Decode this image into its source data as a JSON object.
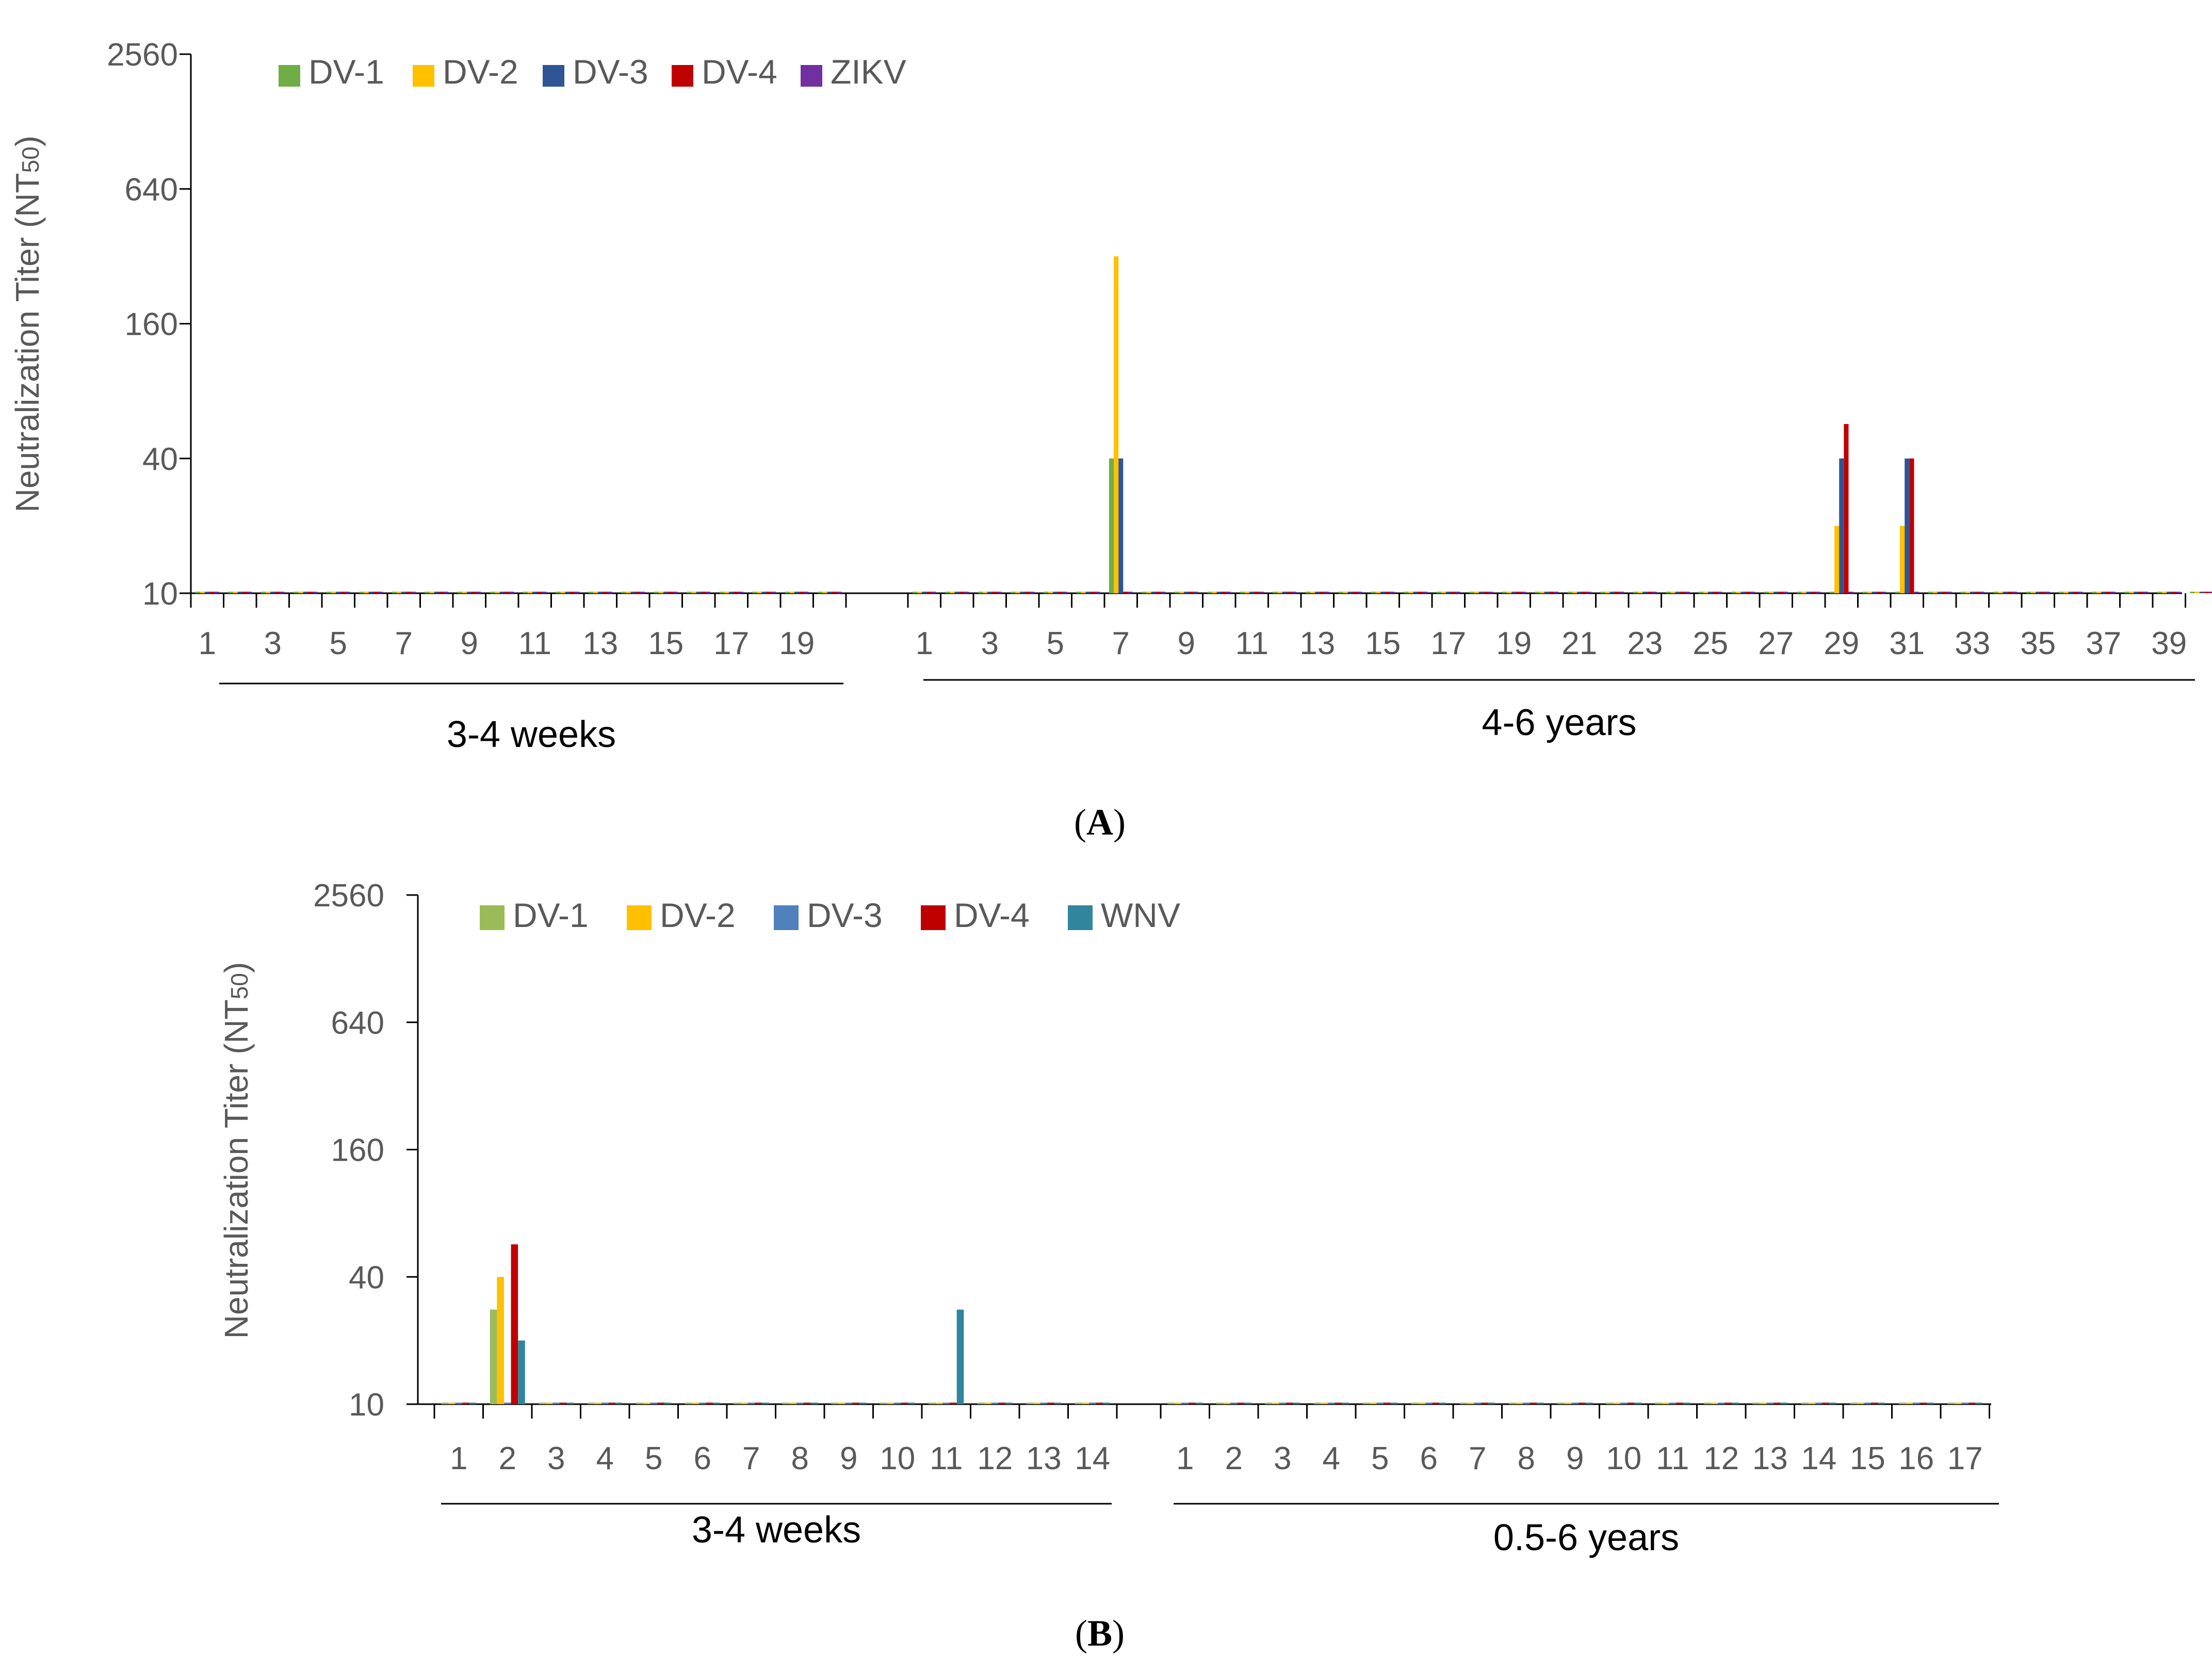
{
  "chart_data": [
    {
      "type": "bar",
      "panel": "A",
      "panel_label_open": "(",
      "panel_label_letter": "A",
      "panel_label_close": ")",
      "ylabel": "Neutralization Titer (NT50)",
      "ylabel_main": "Neutralization Titer (NT",
      "ylabel_sub": "50",
      "ylabel_close": ")",
      "yscale": "log2",
      "ylim": [
        10,
        2560
      ],
      "yticks": [
        "10",
        "40",
        "160",
        "640",
        "2560"
      ],
      "ytick_values": [
        10,
        40,
        160,
        640,
        2560
      ],
      "baseline_value": 10,
      "legend_position": "top-left",
      "series": [
        {
          "name": "DV-1",
          "color": "#70AD47"
        },
        {
          "name": "DV-2",
          "color": "#FFC000"
        },
        {
          "name": "DV-3",
          "color": "#2F5597"
        },
        {
          "name": "DV-4",
          "color": "#C00000"
        },
        {
          "name": "ZIKV",
          "color": "#7030A0"
        }
      ],
      "groups": [
        {
          "name": "3-4 weeks",
          "n": 20,
          "tick_labels": [
            "1",
            "3",
            "5",
            "7",
            "9",
            "11",
            "13",
            "15",
            "17",
            "19"
          ],
          "nonbaseline": []
        },
        {
          "name": "4-6 years",
          "n": 40,
          "tick_labels": [
            "1",
            "3",
            "5",
            "7",
            "9",
            "11",
            "13",
            "15",
            "17",
            "19",
            "21",
            "23",
            "25",
            "27",
            "29",
            "31",
            "33",
            "35",
            "37",
            "39"
          ],
          "nonbaseline": [
            {
              "subject": 7,
              "values": {
                "DV-1": 40,
                "DV-2": 320,
                "DV-3": 40
              }
            },
            {
              "subject": 29,
              "values": {
                "DV-2": 20,
                "DV-3": 40,
                "DV-4": 57
              }
            },
            {
              "subject": 31,
              "values": {
                "DV-2": 20,
                "DV-3": 40,
                "DV-4": 40
              }
            }
          ]
        }
      ]
    },
    {
      "type": "bar",
      "panel": "B",
      "panel_label_open": "(",
      "panel_label_letter": "B",
      "panel_label_close": ")",
      "ylabel": "Neutralization Titer (NT50)",
      "ylabel_main": "Neutralization Titer (NT",
      "ylabel_sub": "50",
      "ylabel_close": ")",
      "yscale": "log2",
      "ylim": [
        10,
        2560
      ],
      "yticks": [
        "10",
        "40",
        "160",
        "640",
        "2560"
      ],
      "ytick_values": [
        10,
        40,
        160,
        640,
        2560
      ],
      "baseline_value": 10,
      "legend_position": "top-left",
      "series": [
        {
          "name": "DV-1",
          "color": "#9BBB59"
        },
        {
          "name": "DV-2",
          "color": "#FFC000"
        },
        {
          "name": "DV-3",
          "color": "#4F81BD"
        },
        {
          "name": "DV-4",
          "color": "#C00000"
        },
        {
          "name": "WNV",
          "color": "#31859C"
        }
      ],
      "groups": [
        {
          "name": "3-4 weeks",
          "n": 14,
          "tick_labels": [
            "1",
            "2",
            "3",
            "4",
            "5",
            "6",
            "7",
            "8",
            "9",
            "10",
            "11",
            "12",
            "13",
            "14"
          ],
          "nonbaseline": [
            {
              "subject": 2,
              "values": {
                "DV-1": 28,
                "DV-2": 40,
                "DV-4": 57,
                "WNV": 20
              }
            },
            {
              "subject": 11,
              "values": {
                "WNV": 28
              }
            }
          ]
        },
        {
          "name": "0.5-6 years",
          "n": 17,
          "tick_labels": [
            "1",
            "2",
            "3",
            "4",
            "5",
            "6",
            "7",
            "8",
            "9",
            "10",
            "11",
            "12",
            "13",
            "14",
            "15",
            "16",
            "17"
          ],
          "nonbaseline": []
        }
      ]
    }
  ]
}
